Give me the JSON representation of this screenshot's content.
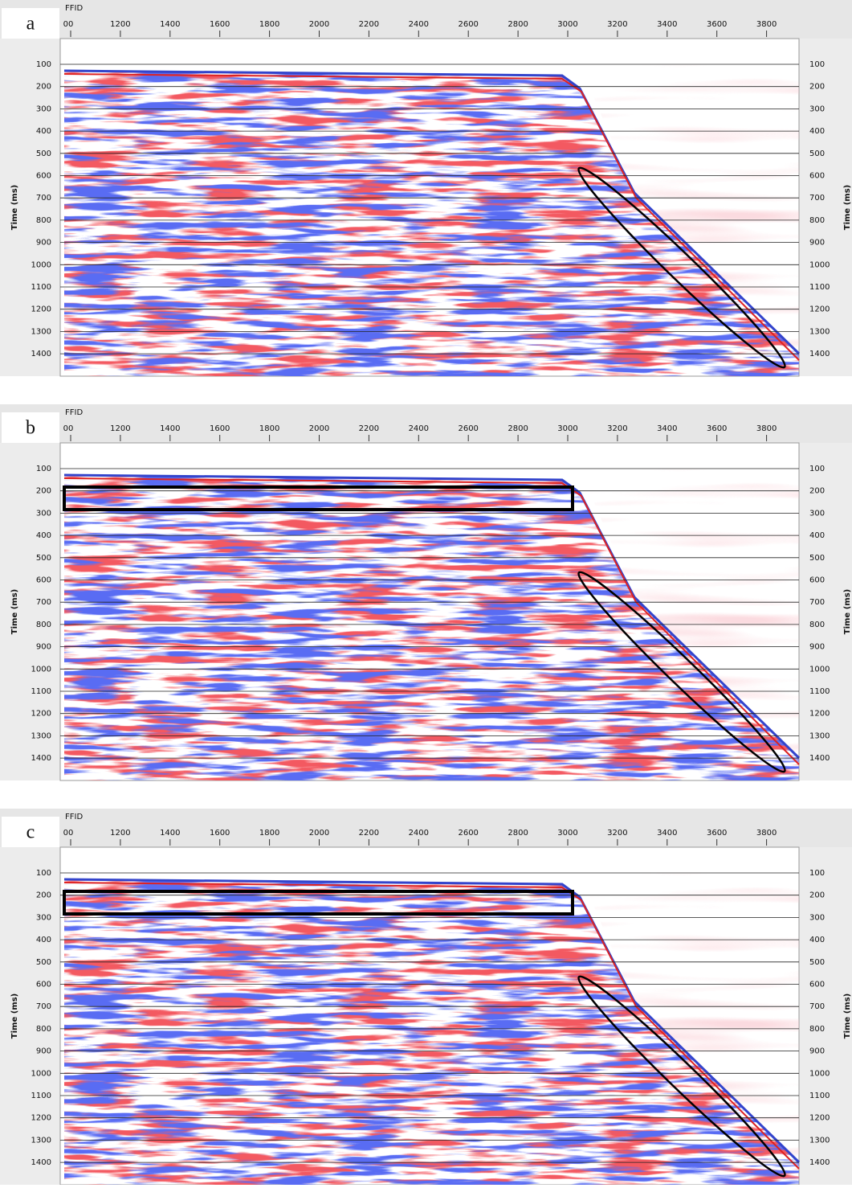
{
  "panels": [
    {
      "label": "a",
      "x_axis_title": "FFID",
      "x_ticks": [
        "00",
        "1200",
        "1400",
        "1600",
        "1800",
        "2000",
        "2200",
        "2400",
        "2600",
        "2800",
        "3000",
        "3200",
        "3400",
        "3600",
        "3800"
      ],
      "y_ticks": [
        "100",
        "200",
        "300",
        "400",
        "500",
        "600",
        "700",
        "800",
        "900",
        "1000",
        "1100",
        "1200",
        "1300",
        "1400"
      ],
      "y_title": "Time (ms)"
    },
    {
      "label": "b",
      "x_axis_title": "FFID",
      "x_ticks": [
        "00",
        "1200",
        "1400",
        "1600",
        "1800",
        "2000",
        "2200",
        "2400",
        "2600",
        "2800",
        "3000",
        "3200",
        "3400",
        "3600",
        "3800"
      ],
      "y_ticks": [
        "100",
        "200",
        "300",
        "400",
        "500",
        "600",
        "700",
        "800",
        "900",
        "1000",
        "1100",
        "1200",
        "1300",
        "1400"
      ],
      "y_title": "Time (ms)"
    },
    {
      "label": "c",
      "x_axis_title": "FFID",
      "x_ticks": [
        "00",
        "1200",
        "1400",
        "1600",
        "1800",
        "2000",
        "2200",
        "2400",
        "2600",
        "2800",
        "3000",
        "3200",
        "3400",
        "3600",
        "3800"
      ],
      "y_ticks": [
        "100",
        "200",
        "300",
        "400",
        "500",
        "600",
        "700",
        "800",
        "900",
        "1000",
        "1100",
        "1200",
        "1300",
        "1400"
      ],
      "y_title": "Time (ms)"
    }
  ]
}
